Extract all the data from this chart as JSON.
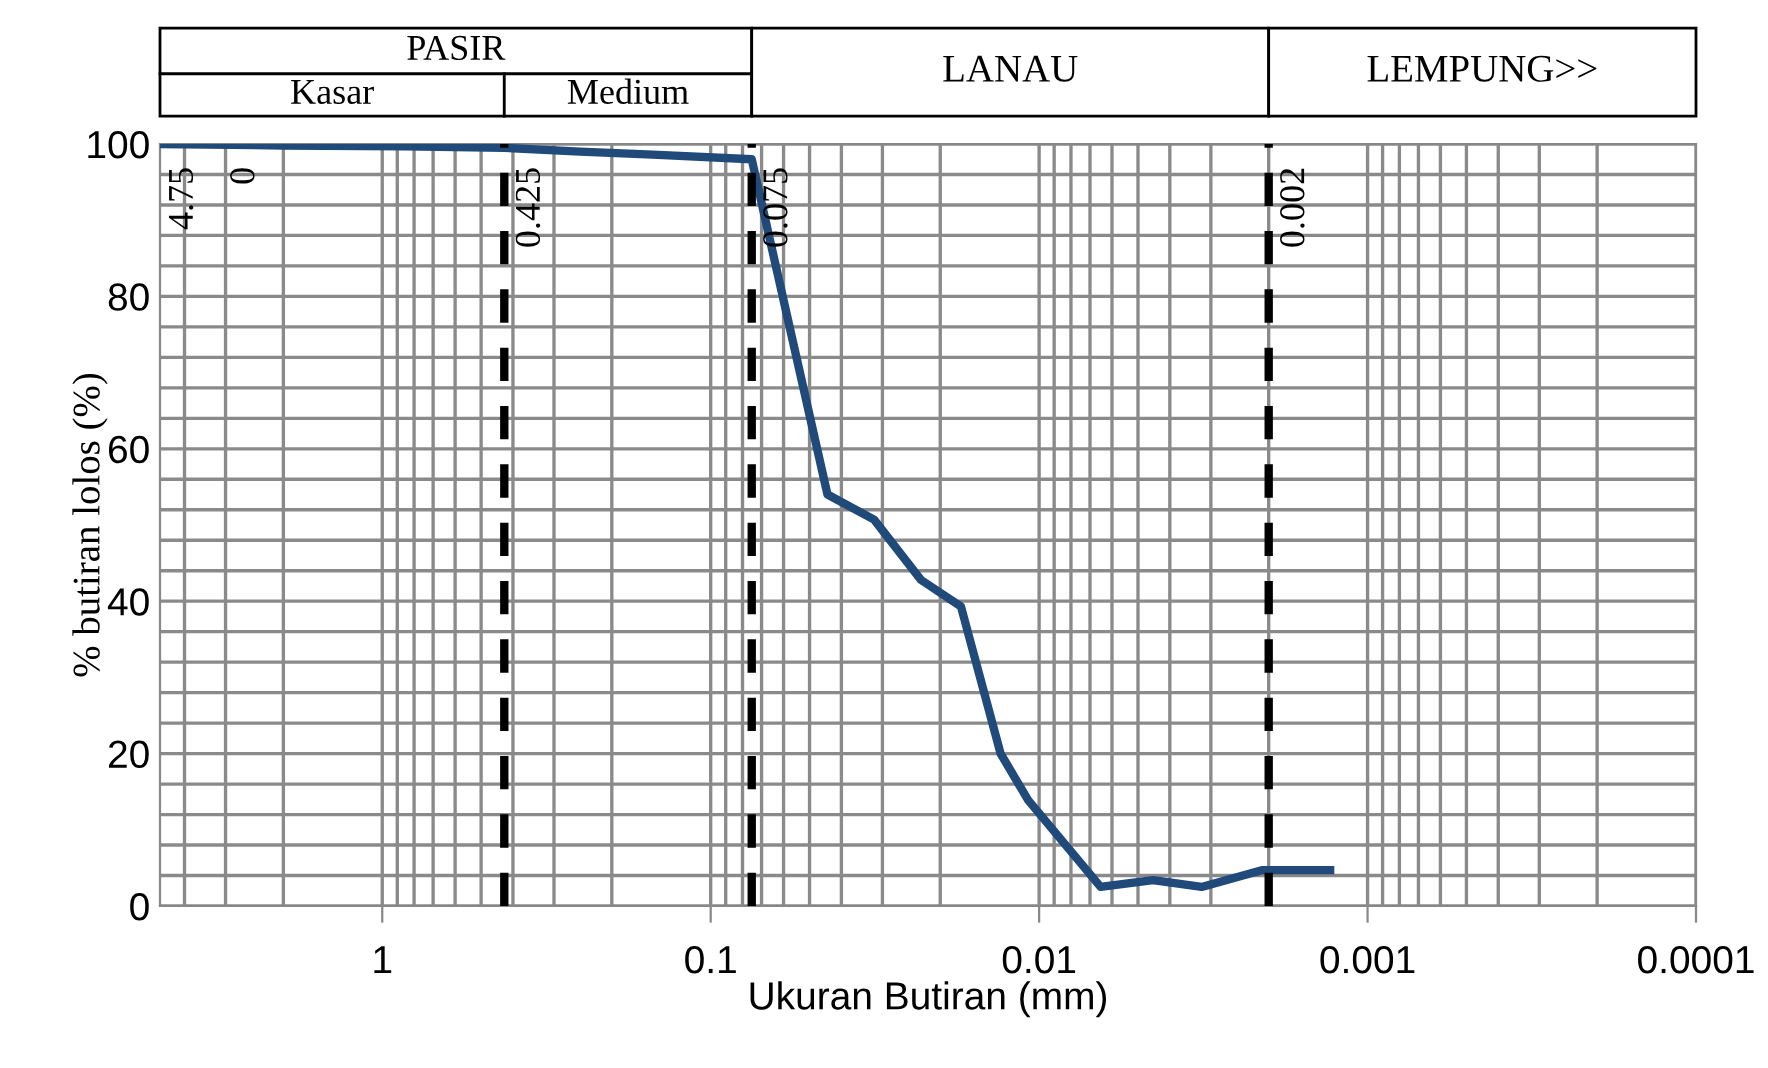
{
  "chart_data": {
    "type": "line",
    "xlabel": "Ukuran Butiran (mm)",
    "ylabel": "% butiran lolos (%)",
    "x": [
      4.75,
      2,
      0.85,
      0.425,
      0.25,
      0.15,
      0.075,
      0.0441,
      0.0318,
      0.0229,
      0.0173,
      0.0131,
      0.0108,
      0.0065,
      0.0045,
      0.0032,
      0.0021,
      0.0013
    ],
    "series": [
      {
        "color": "#1f4a7a",
        "values": [
          100,
          99.8,
          99.7,
          99.5,
          99,
          98.6,
          98,
          54,
          50.7,
          42.8,
          39.3,
          20,
          13.9,
          2.5,
          3.4,
          2.5,
          4.7,
          4.7
        ]
      }
    ],
    "log": "x",
    "xlim": [
      4.75,
      0.0001
    ],
    "xticks": [
      1,
      0.1,
      0.01,
      0.001,
      0.0001
    ],
    "ylim": [
      0,
      100
    ],
    "yticks": [
      0,
      20,
      40,
      60,
      80,
      100
    ],
    "grid": true,
    "marker": "none",
    "line_style": "solid",
    "ref_lines": [
      {
        "axis": "x",
        "value": 0.425,
        "label": "0.425",
        "color": "#000000",
        "line_style": "dashed"
      },
      {
        "axis": "x",
        "value": 0.075,
        "label": "0.075",
        "color": "#000000",
        "line_style": "dashed"
      },
      {
        "axis": "x",
        "value": 0.002,
        "label": "0.002",
        "color": "#000000",
        "line_style": "dashed"
      }
    ],
    "annotations": [
      "4.75",
      "0",
      "PASIR",
      "Kasar",
      "Medium",
      "LANAU",
      "LEMPUNG>>"
    ]
  }
}
